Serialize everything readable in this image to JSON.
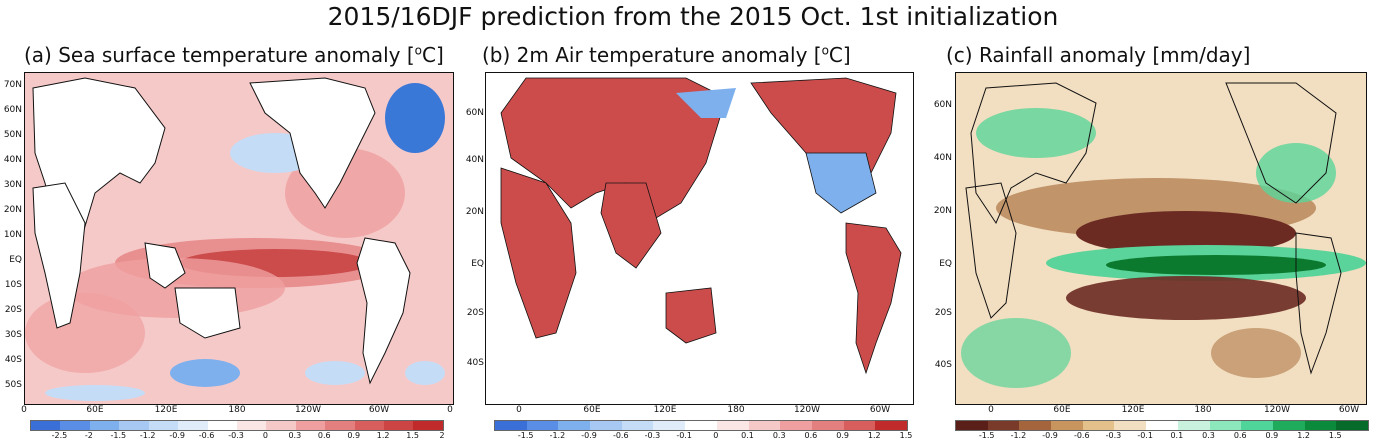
{
  "title": "2015/16DJF prediction from the 2015 Oct. 1st initialization",
  "panels": [
    {
      "title_prefix": "(a) Sea surface temperature anomaly [",
      "title_unit_sup": "o",
      "title_suffix": "C]",
      "lat_labels": [
        "70N",
        "60N",
        "50N",
        "40N",
        "30N",
        "20N",
        "10N",
        "EQ",
        "10S",
        "20S",
        "30S",
        "40S",
        "50S"
      ],
      "lon_labels": [
        "0",
        "60E",
        "120E",
        "180",
        "120W",
        "60W",
        "0"
      ],
      "colorbar_labels": [
        "-2.5",
        "-2",
        "-1.5",
        "-1.2",
        "-0.9",
        "-0.6",
        "-0.3",
        "0",
        "0.3",
        "0.6",
        "0.9",
        "1.2",
        "1.5",
        "2"
      ]
    },
    {
      "title_prefix": "(b) 2m Air temperature anomaly [",
      "title_unit_sup": "o",
      "title_suffix": "C]",
      "lat_labels": [
        "60N",
        "40N",
        "20N",
        "EQ",
        "20S",
        "40S"
      ],
      "lon_labels": [
        "0",
        "60E",
        "120E",
        "180",
        "120W",
        "60W"
      ],
      "colorbar_labels": [
        "-1.5",
        "-1.2",
        "-0.9",
        "-0.6",
        "-0.3",
        "-0.1",
        "0",
        "0.1",
        "0.3",
        "0.6",
        "0.9",
        "1.2",
        "1.5"
      ]
    },
    {
      "title_prefix": "(c) Rainfall anomaly [mm/day]",
      "title_unit_sup": "",
      "title_suffix": "",
      "lat_labels": [
        "60N",
        "40N",
        "20N",
        "EQ",
        "20S",
        "40S"
      ],
      "lon_labels": [
        "0",
        "60E",
        "120E",
        "180",
        "120W",
        "60W"
      ],
      "colorbar_labels": [
        "-1.5",
        "-1.2",
        "-0.9",
        "-0.6",
        "-0.3",
        "-0.1",
        "0.1",
        "0.3",
        "0.6",
        "0.9",
        "1.2",
        "1.5"
      ]
    }
  ],
  "colors": {
    "warm_strong": "#cc4c4c",
    "warm_mid": "#e89090",
    "warm_light": "#f6c9c9",
    "cool_strong": "#3a78d8",
    "cool_mid": "#7fb0ee",
    "cool_light": "#c5dcf6",
    "dry_strong": "#6b2a22",
    "dry_mid": "#b9875a",
    "wet_strong": "#0c7a2e",
    "wet_mid": "#5ad49a",
    "land": "#ffffff"
  },
  "colorbars": {
    "a": [
      "#3a6fd8",
      "#5a8ee6",
      "#7fb0ee",
      "#a6c8f2",
      "#c5dcf6",
      "#e0ecfa",
      "#ffffff",
      "#fbe6e6",
      "#f6c9c9",
      "#ef9f9f",
      "#e47f7f",
      "#d85d5d",
      "#cc4444",
      "#c02a2a"
    ],
    "b": [
      "#3a6fd8",
      "#5a8ee6",
      "#7fb0ee",
      "#a6c8f2",
      "#c5dcf6",
      "#e0ecfa",
      "#ffffff",
      "#fbe6e6",
      "#f6c9c9",
      "#ef9f9f",
      "#e47f7f",
      "#d85d5d",
      "#c02a2a"
    ],
    "c": [
      "#5a1f18",
      "#7a3a2a",
      "#a5653c",
      "#c9955f",
      "#e4c08a",
      "#f2dec0",
      "#ffffff",
      "#c9f2de",
      "#8ce7bd",
      "#4fd49a",
      "#1eab5c",
      "#0c8a3c",
      "#066a2a"
    ]
  }
}
